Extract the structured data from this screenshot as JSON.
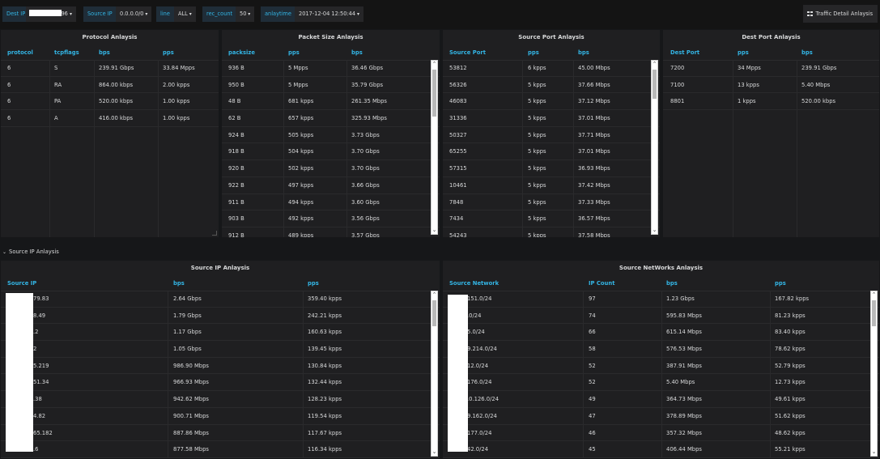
{
  "topbar": {
    "dest_ip_label": "Dest IP",
    "dest_ip_value": "96",
    "source_ip_label": "Source IP",
    "source_ip_value": "0.0.0.0/0",
    "line_label": "line",
    "line_value": "ALL",
    "rec_count_label": "rec_count",
    "rec_count_value": "50",
    "time_label": "anlaytime",
    "time_value": "2017-12-04 12:50:44",
    "detail_button": "Traffic Detail Anlaysis"
  },
  "protocol": {
    "title": "Protocol Anlaysis",
    "columns": [
      "protocol",
      "tcpflags",
      "bps",
      "pps"
    ],
    "rows": [
      [
        "6",
        "S",
        "239.91 Gbps",
        "33.84 Mpps"
      ],
      [
        "6",
        "RA",
        "864.00 kbps",
        "2.00 kpps"
      ],
      [
        "6",
        "PA",
        "520.00 kbps",
        "1.00 kpps"
      ],
      [
        "6",
        "A",
        "416.00 kbps",
        "1.00 kpps"
      ]
    ]
  },
  "packet_size": {
    "title": "Packet Size Anlaysis",
    "columns": [
      "packsize",
      "pps",
      "bps"
    ],
    "rows": [
      [
        "936 B",
        "5 Mpps",
        "36.46 Gbps"
      ],
      [
        "950 B",
        "5 Mpps",
        "35.79 Gbps"
      ],
      [
        "48 B",
        "681 kpps",
        "261.35 Mbps"
      ],
      [
        "62 B",
        "657 kpps",
        "325.93 Mbps"
      ],
      [
        "924 B",
        "505 kpps",
        "3.73 Gbps"
      ],
      [
        "918 B",
        "504 kpps",
        "3.70 Gbps"
      ],
      [
        "920 B",
        "502 kpps",
        "3.70 Gbps"
      ],
      [
        "922 B",
        "497 kpps",
        "3.66 Gbps"
      ],
      [
        "911 B",
        "494 kpps",
        "3.60 Gbps"
      ],
      [
        "903 B",
        "492 kpps",
        "3.56 Gbps"
      ],
      [
        "912 B",
        "489 kpps",
        "3.57 Gbps"
      ]
    ]
  },
  "source_port": {
    "title": "Source Port Anlaysis",
    "columns": [
      "Source Port",
      "pps",
      "bps"
    ],
    "rows": [
      [
        "53812",
        "6 kpps",
        "45.00 Mbps"
      ],
      [
        "56326",
        "5 kpps",
        "37.66 Mbps"
      ],
      [
        "46083",
        "5 kpps",
        "37.12 Mbps"
      ],
      [
        "31336",
        "5 kpps",
        "37.01 Mbps"
      ],
      [
        "50327",
        "5 kpps",
        "37.71 Mbps"
      ],
      [
        "65255",
        "5 kpps",
        "37.01 Mbps"
      ],
      [
        "57315",
        "5 kpps",
        "36.93 Mbps"
      ],
      [
        "10461",
        "5 kpps",
        "37.42 Mbps"
      ],
      [
        "7848",
        "5 kpps",
        "37.33 Mbps"
      ],
      [
        "7434",
        "5 kpps",
        "36.57 Mbps"
      ],
      [
        "54243",
        "5 kpps",
        "37.58 Mbps"
      ]
    ]
  },
  "dest_port": {
    "title": "Dest Port Anlaysis",
    "columns": [
      "Dest Port",
      "pps",
      "bps"
    ],
    "rows": [
      [
        "7200",
        "34 Mpps",
        "239.91 Gbps"
      ],
      [
        "7100",
        "13 kpps",
        "5.40 Mbps"
      ],
      [
        "8801",
        "1 kpps",
        "520.00 kbps"
      ]
    ]
  },
  "section_row": {
    "label": "Source IP Anlaysis"
  },
  "source_ip": {
    "title": "Source IP Anlaysis",
    "columns": [
      "Source IP",
      "bps",
      "pps"
    ],
    "rows": [
      [
        "79.83",
        "2.64 Gbps",
        "359.40 kpps"
      ],
      [
        "8.49",
        "1.79 Gbps",
        "242.21 kpps"
      ],
      [
        ".2",
        "1.17 Gbps",
        "160.63 kpps"
      ],
      [
        "2",
        "1.05 Gbps",
        "139.45 kpps"
      ],
      [
        "5.219",
        "986.90 Mbps",
        "130.84 kpps"
      ],
      [
        "51.34",
        "966.93 Mbps",
        "132.44 kpps"
      ],
      [
        ".38",
        "942.62 Mbps",
        "128.23 kpps"
      ],
      [
        "4.82",
        "900.71 Mbps",
        "119.54 kpps"
      ],
      [
        "65.182",
        "887.86 Mbps",
        "117.67 kpps"
      ],
      [
        ".6",
        "877.58 Mbps",
        "116.34 kpps"
      ]
    ]
  },
  "source_networks": {
    "title": "Source NetWorks Anlaysis",
    "columns": [
      "Source Network",
      "IP Count",
      "bps",
      "pps"
    ],
    "rows": [
      [
        "151.0/24",
        "97",
        "1.23 Gbps",
        "167.82 kpps"
      ],
      [
        ".0/24",
        "74",
        "595.83 Mbps",
        "81.23 kpps"
      ],
      [
        "5.0/24",
        "66",
        "615.14 Mbps",
        "83.40 kpps"
      ],
      [
        "9.214.0/24",
        "58",
        "576.53 Mbps",
        "78.62 kpps"
      ],
      [
        "12.0/24",
        "52",
        "387.91 Mbps",
        "52.79 kpps"
      ],
      [
        "176.0/24",
        "52",
        "5.40 Mbps",
        "12.73 kpps"
      ],
      [
        ".0.126.0/24",
        "49",
        "364.73 Mbps",
        "49.61 kpps"
      ],
      [
        "9.162.0/24",
        "47",
        "378.89 Mbps",
        "51.62 kpps"
      ],
      [
        "177.0/24",
        "46",
        "357.32 Mbps",
        "48.62 kpps"
      ],
      [
        "42.0/24",
        "45",
        "406.44 Mbps",
        "55.21 kpps"
      ]
    ]
  }
}
